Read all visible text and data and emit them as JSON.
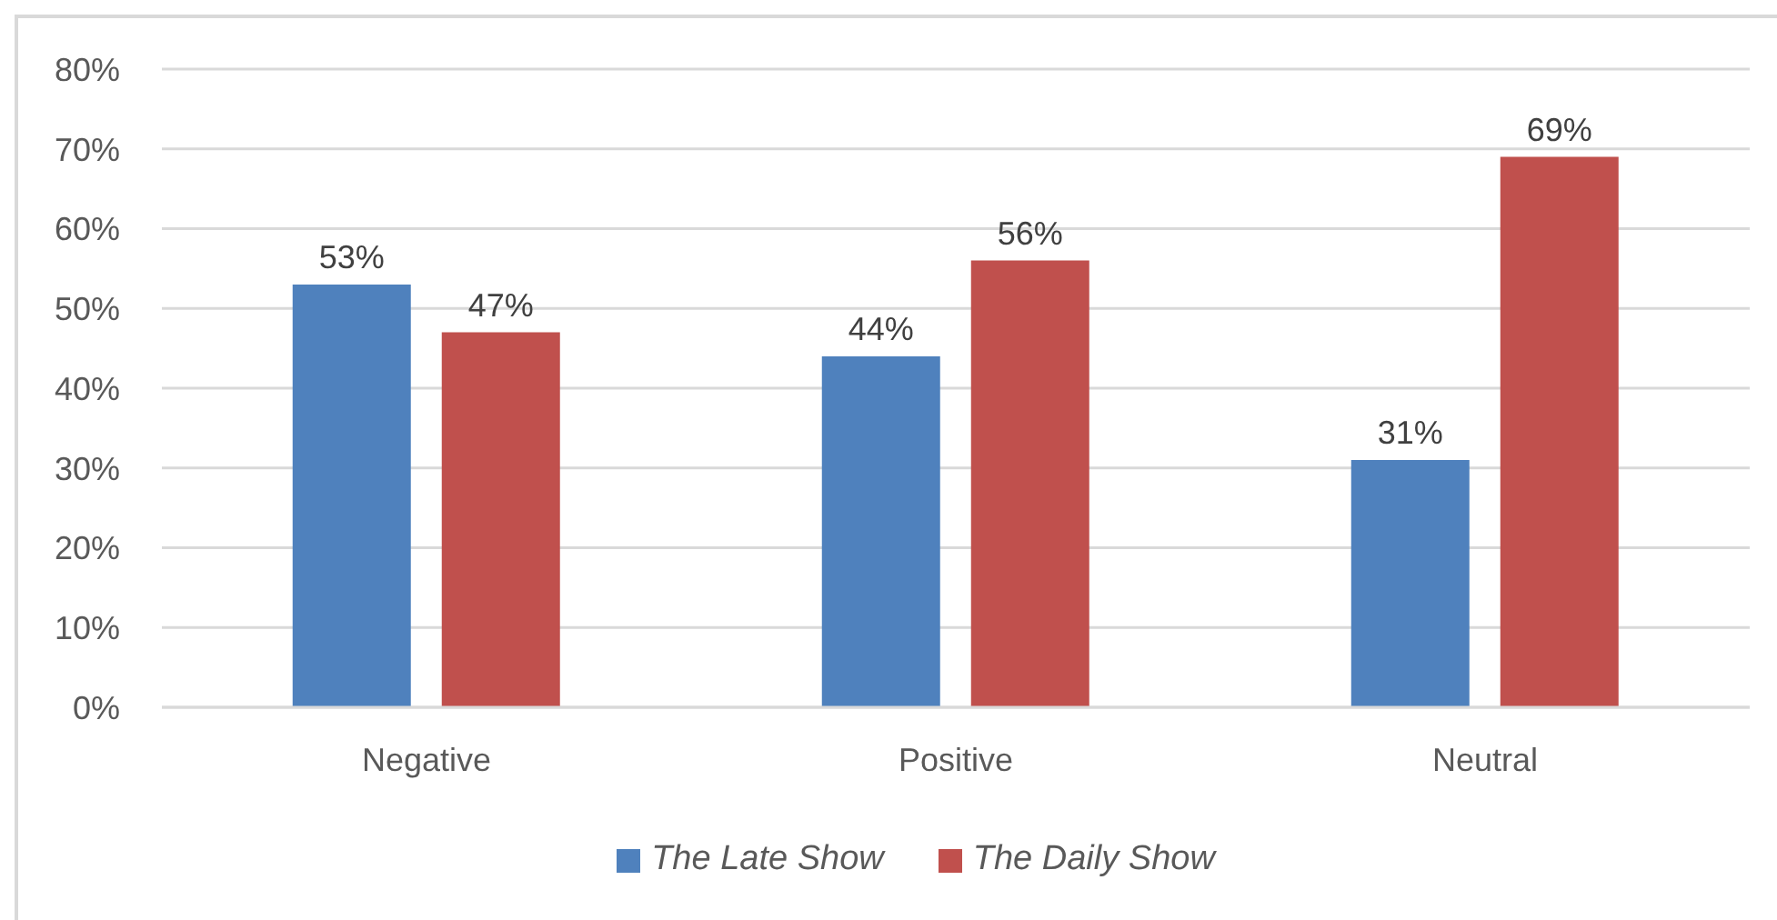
{
  "chart_data": {
    "type": "bar",
    "categories": [
      "Negative",
      "Positive",
      "Neutral"
    ],
    "series": [
      {
        "name": "The Late Show",
        "color": "#4f81bd",
        "values": [
          53,
          44,
          31
        ],
        "value_labels": [
          "53%",
          "44%",
          "31%"
        ]
      },
      {
        "name": "The Daily Show",
        "color": "#c0504d",
        "values": [
          47,
          56,
          69
        ],
        "value_labels": [
          "47%",
          "56%",
          "69%"
        ]
      }
    ],
    "ylim": [
      0,
      80
    ],
    "yticks": [
      {
        "value": 0,
        "label": "0%"
      },
      {
        "value": 10,
        "label": "10%"
      },
      {
        "value": 20,
        "label": "20%"
      },
      {
        "value": 30,
        "label": "30%"
      },
      {
        "value": 40,
        "label": "40%"
      },
      {
        "value": 50,
        "label": "50%"
      },
      {
        "value": 60,
        "label": "60%"
      },
      {
        "value": 70,
        "label": "70%"
      },
      {
        "value": 80,
        "label": "80%"
      }
    ],
    "grid": "y",
    "legend": "bottom"
  }
}
